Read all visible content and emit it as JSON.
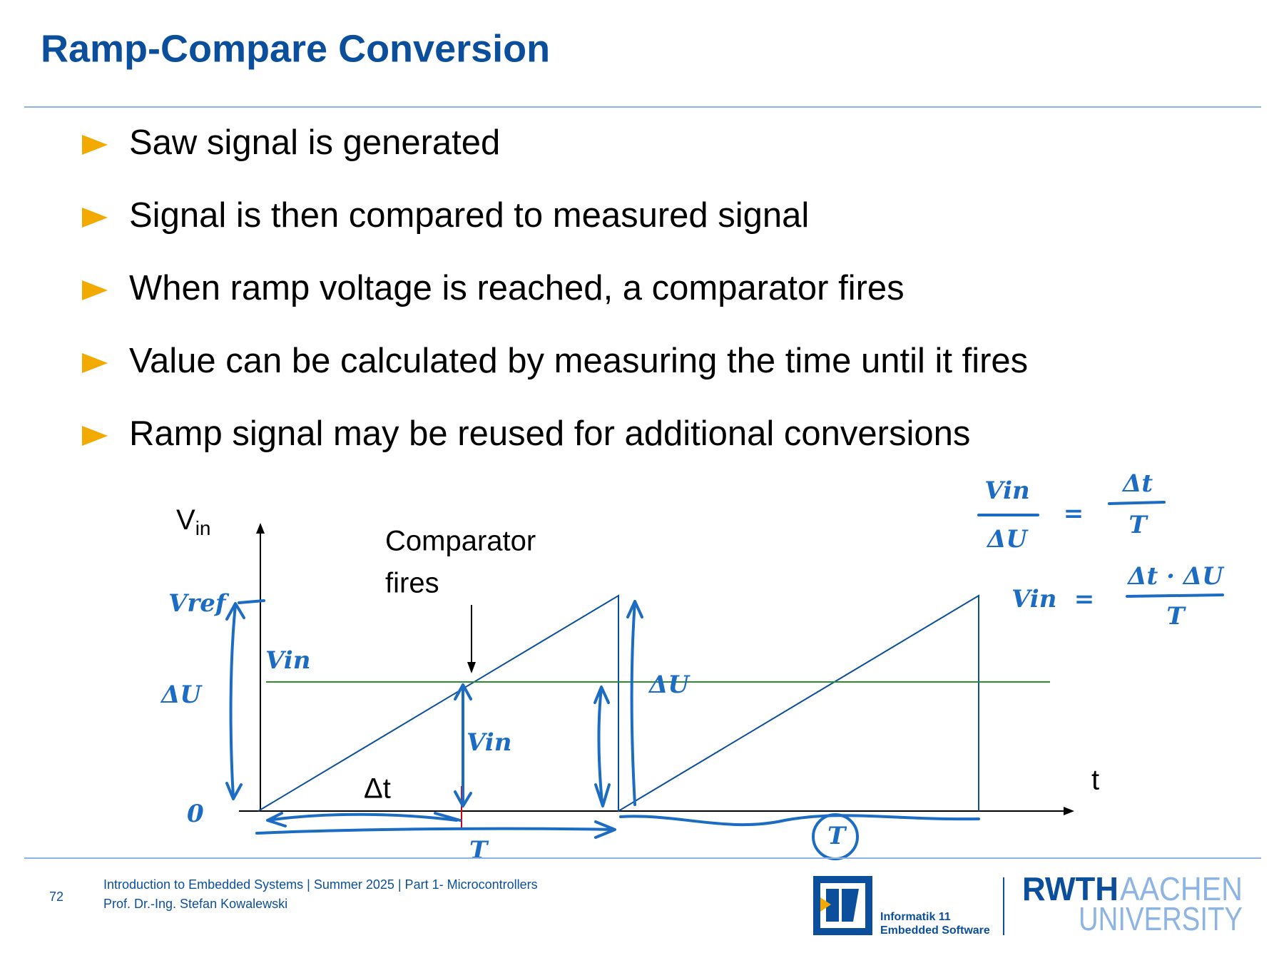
{
  "header": {
    "title": "Ramp-Compare Conversion"
  },
  "bullets": [
    "Saw signal is generated",
    "Signal is then compared to measured signal",
    "When ramp voltage is reached, a comparator fires",
    "Value can be calculated by measuring the time until it fires",
    "Ramp signal may be reused for additional conversions"
  ],
  "diagram": {
    "y_axis_label": {
      "main": "V",
      "sub": "in"
    },
    "x_axis_label": "t",
    "comparator_label": [
      "Comparator",
      "fires"
    ],
    "delta_t_label": "Δt",
    "handwritten": {
      "v_ref": "Vref",
      "delta_u_left": "ΔU",
      "zero": "0",
      "v_in_level": "Vin",
      "v_in_arrow": "Vin",
      "delta_u_right": "ΔU",
      "period": "T",
      "period_circled": "T"
    },
    "equations": [
      {
        "left_num": "Vin",
        "left_den": "ΔU",
        "op": "=",
        "right_num": "Δt",
        "right_den": "T"
      },
      {
        "left": "Vin",
        "op": "=",
        "right_num": "Δt · ΔU",
        "right_den": "T"
      }
    ]
  },
  "footer": {
    "page_number": "72",
    "course": "Introduction to Embedded Systems | Summer 2025 | Part 1- Microcontrollers",
    "author": "Prof. Dr.-Ing. Stefan Kowalewski",
    "logo_informatik": [
      "Informatik 11",
      "Embedded Software"
    ],
    "logo_rwth": {
      "part1": "RWTH",
      "part2": "AACHEN",
      "part3": "UNIVERSITY"
    }
  }
}
